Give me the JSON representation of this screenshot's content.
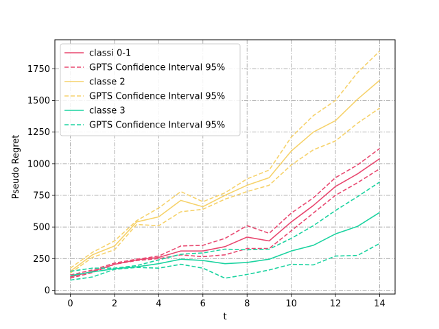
{
  "chart_data": {
    "type": "line",
    "title": "",
    "xlabel": "t",
    "ylabel": "Pseudo Regret",
    "xlim": [
      -0.7,
      14.7
    ],
    "ylim": [
      -30,
      1980
    ],
    "xticks": [
      0,
      2,
      4,
      6,
      8,
      10,
      12,
      14
    ],
    "yticks": [
      0,
      250,
      500,
      750,
      1000,
      1250,
      1500,
      1750
    ],
    "grid": true,
    "legend_position": "upper-left",
    "x": [
      0,
      1,
      2,
      3,
      4,
      5,
      6,
      7,
      8,
      9,
      10,
      11,
      12,
      13,
      14
    ],
    "series": [
      {
        "name": "classi 0-1",
        "style": "solid",
        "color": "#e8476f",
        "values": [
          105,
          150,
          205,
          240,
          260,
          310,
          310,
          345,
          420,
          390,
          540,
          670,
          820,
          920,
          1040
        ]
      },
      {
        "name": "GPTS Confidence Interval 95%",
        "style": "dashed",
        "color": "#e8476f",
        "values": [
          120,
          160,
          215,
          245,
          270,
          350,
          355,
          410,
          510,
          450,
          610,
          730,
          890,
          990,
          1120
        ]
      },
      {
        "name": "",
        "style": "dashed",
        "color": "#e8476f",
        "in_legend": false,
        "values": [
          95,
          140,
          205,
          235,
          250,
          280,
          265,
          280,
          330,
          330,
          470,
          610,
          750,
          850,
          960
        ]
      },
      {
        "name": "classe 2",
        "style": "solid",
        "color": "#f6d26b",
        "values": [
          150,
          280,
          350,
          540,
          580,
          710,
          660,
          750,
          830,
          890,
          1100,
          1250,
          1340,
          1510,
          1660
        ]
      },
      {
        "name": "GPTS Confidence Interval 95%",
        "style": "dashed",
        "color": "#f6d26b",
        "values": [
          175,
          300,
          390,
          550,
          650,
          780,
          700,
          770,
          880,
          950,
          1210,
          1380,
          1500,
          1720,
          1890
        ]
      },
      {
        "name": "",
        "style": "dashed",
        "color": "#f6d26b",
        "in_legend": false,
        "values": [
          135,
          260,
          320,
          520,
          510,
          620,
          640,
          720,
          780,
          830,
          990,
          1110,
          1180,
          1320,
          1440
        ]
      },
      {
        "name": "classe 3",
        "style": "solid",
        "color": "#1bd3a0",
        "values": [
          115,
          145,
          170,
          185,
          210,
          245,
          235,
          210,
          220,
          245,
          310,
          355,
          445,
          505,
          615
        ]
      },
      {
        "name": "GPTS Confidence Interval 95%",
        "style": "dashed",
        "color": "#1bd3a0",
        "values": [
          150,
          175,
          175,
          195,
          240,
          285,
          295,
          325,
          320,
          325,
          410,
          510,
          630,
          740,
          855
        ]
      },
      {
        "name": "",
        "style": "dashed",
        "color": "#1bd3a0",
        "in_legend": false,
        "values": [
          80,
          105,
          165,
          180,
          175,
          205,
          175,
          95,
          125,
          160,
          205,
          200,
          270,
          275,
          370
        ]
      }
    ]
  }
}
